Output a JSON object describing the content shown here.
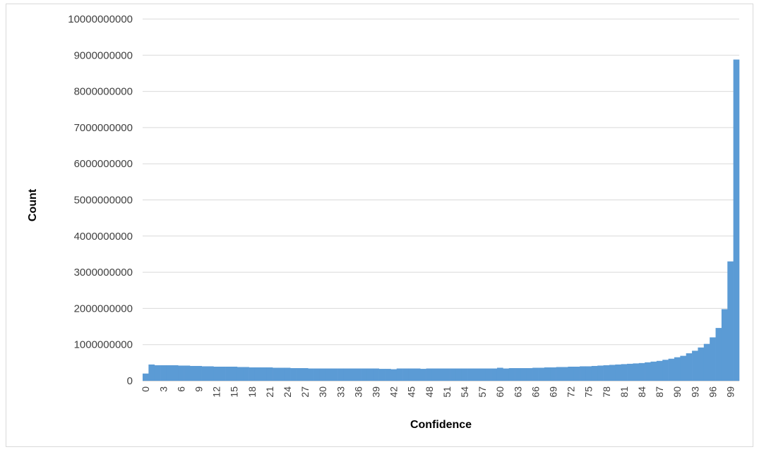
{
  "chart_data": {
    "type": "bar",
    "title": "",
    "xlabel": "Confidence",
    "ylabel": "Count",
    "ylim": [
      0,
      10000000000
    ],
    "y_ticks": [
      "0",
      "1000000000",
      "2000000000",
      "3000000000",
      "4000000000",
      "5000000000",
      "6000000000",
      "7000000000",
      "8000000000",
      "9000000000",
      "10000000000"
    ],
    "x_tick_labels": [
      "0",
      "3",
      "6",
      "9",
      "12",
      "15",
      "18",
      "21",
      "24",
      "27",
      "30",
      "33",
      "36",
      "39",
      "42",
      "45",
      "48",
      "51",
      "54",
      "57",
      "60",
      "63",
      "66",
      "69",
      "72",
      "75",
      "78",
      "81",
      "84",
      "87",
      "90",
      "93",
      "96",
      "99"
    ],
    "grid": true,
    "legend": "none",
    "bar_color": "#5b9bd5",
    "categories": [
      0,
      1,
      2,
      3,
      4,
      5,
      6,
      7,
      8,
      9,
      10,
      11,
      12,
      13,
      14,
      15,
      16,
      17,
      18,
      19,
      20,
      21,
      22,
      23,
      24,
      25,
      26,
      27,
      28,
      29,
      30,
      31,
      32,
      33,
      34,
      35,
      36,
      37,
      38,
      39,
      40,
      41,
      42,
      43,
      44,
      45,
      46,
      47,
      48,
      49,
      50,
      51,
      52,
      53,
      54,
      55,
      56,
      57,
      58,
      59,
      60,
      61,
      62,
      63,
      64,
      65,
      66,
      67,
      68,
      69,
      70,
      71,
      72,
      73,
      74,
      75,
      76,
      77,
      78,
      79,
      80,
      81,
      82,
      83,
      84,
      85,
      86,
      87,
      88,
      89,
      90,
      91,
      92,
      93,
      94,
      95,
      96,
      97,
      98,
      99,
      100
    ],
    "values": [
      200000000,
      450000000,
      430000000,
      430000000,
      430000000,
      430000000,
      420000000,
      420000000,
      410000000,
      410000000,
      400000000,
      400000000,
      390000000,
      390000000,
      390000000,
      390000000,
      380000000,
      380000000,
      370000000,
      370000000,
      370000000,
      370000000,
      360000000,
      360000000,
      360000000,
      350000000,
      350000000,
      350000000,
      340000000,
      340000000,
      340000000,
      340000000,
      340000000,
      340000000,
      340000000,
      340000000,
      340000000,
      340000000,
      340000000,
      340000000,
      330000000,
      330000000,
      320000000,
      340000000,
      340000000,
      340000000,
      340000000,
      330000000,
      340000000,
      340000000,
      340000000,
      340000000,
      340000000,
      340000000,
      340000000,
      340000000,
      340000000,
      340000000,
      340000000,
      340000000,
      360000000,
      340000000,
      350000000,
      350000000,
      350000000,
      350000000,
      360000000,
      360000000,
      370000000,
      370000000,
      380000000,
      380000000,
      390000000,
      390000000,
      400000000,
      400000000,
      410000000,
      420000000,
      430000000,
      440000000,
      450000000,
      460000000,
      470000000,
      480000000,
      490000000,
      510000000,
      530000000,
      550000000,
      580000000,
      610000000,
      650000000,
      690000000,
      760000000,
      830000000,
      920000000,
      1020000000,
      1200000000,
      1460000000,
      1980000000,
      3300000000,
      8880000000
    ]
  }
}
